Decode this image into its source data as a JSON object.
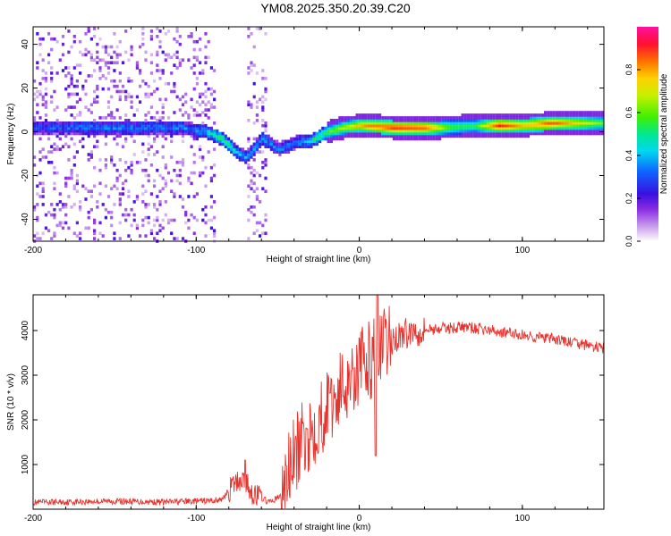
{
  "title": "YM08.2025.350.20.39.C20",
  "chart_data": [
    {
      "type": "heatmap",
      "name": "spectrogram",
      "xlabel": "Height of straight line (km)",
      "ylabel": "Frequency (Hz)",
      "xlim": [
        -200,
        150
      ],
      "ylim": [
        -50,
        48
      ],
      "xticks": [
        -200,
        -100,
        0,
        100
      ],
      "yticks": [
        -40,
        -20,
        0,
        20,
        40
      ],
      "colorbar": {
        "label": "Normalized spectral amplitude",
        "range": [
          0,
          1
        ],
        "ticks": [
          0.0,
          0.2,
          0.4,
          0.6,
          0.8
        ],
        "tick_labels": [
          "0.0",
          "0.2",
          "0.4",
          "0.6",
          "0.8"
        ]
      },
      "ridge": {
        "description_points_km_hz": [
          [
            -200,
            2
          ],
          [
            -150,
            2
          ],
          [
            -110,
            2
          ],
          [
            -95,
            0
          ],
          [
            -85,
            -3
          ],
          [
            -78,
            -8
          ],
          [
            -70,
            -12
          ],
          [
            -60,
            -3
          ],
          [
            -50,
            -8
          ],
          [
            -40,
            -5
          ],
          [
            -30,
            -4
          ],
          [
            -20,
            0
          ],
          [
            -10,
            2
          ],
          [
            0,
            3
          ],
          [
            20,
            2
          ],
          [
            50,
            2
          ],
          [
            80,
            3
          ],
          [
            100,
            3
          ],
          [
            120,
            4
          ],
          [
            150,
            4
          ]
        ],
        "amplitude_points": [
          [
            -200,
            0.3
          ],
          [
            -160,
            0.35
          ],
          [
            -120,
            0.35
          ],
          [
            -100,
            0.35
          ],
          [
            -85,
            0.55
          ],
          [
            -75,
            0.4
          ],
          [
            -55,
            0.35
          ],
          [
            -40,
            0.35
          ],
          [
            -20,
            0.6
          ],
          [
            -10,
            0.7
          ],
          [
            0,
            0.8
          ],
          [
            20,
            0.95
          ],
          [
            40,
            0.9
          ],
          [
            55,
            0.6
          ],
          [
            70,
            0.55
          ],
          [
            85,
            0.95
          ],
          [
            100,
            0.8
          ],
          [
            115,
            0.9
          ],
          [
            150,
            0.6
          ]
        ]
      }
    },
    {
      "type": "line",
      "name": "snr",
      "xlabel": "Height of straight line (km)",
      "ylabel": "SNR (10 * v/v)",
      "xlim": [
        -200,
        150
      ],
      "ylim": [
        0,
        4800
      ],
      "xticks": [
        -200,
        -100,
        0,
        100
      ],
      "yticks": [
        1000,
        2000,
        3000,
        4000
      ],
      "color": "#e8322c",
      "trend_km_snr": [
        [
          -200,
          150
        ],
        [
          -150,
          180
        ],
        [
          -120,
          160
        ],
        [
          -100,
          180
        ],
        [
          -85,
          200
        ],
        [
          -78,
          500
        ],
        [
          -72,
          700
        ],
        [
          -65,
          350
        ],
        [
          -55,
          150
        ],
        [
          -48,
          300
        ],
        [
          -42,
          1000
        ],
        [
          -35,
          1500
        ],
        [
          -25,
          2000
        ],
        [
          -15,
          2500
        ],
        [
          -5,
          3000
        ],
        [
          5,
          3300
        ],
        [
          15,
          3600
        ],
        [
          25,
          3900
        ],
        [
          35,
          4000
        ],
        [
          50,
          4050
        ],
        [
          65,
          4080
        ],
        [
          80,
          4000
        ],
        [
          100,
          3900
        ],
        [
          120,
          3800
        ],
        [
          150,
          3600
        ]
      ],
      "spikes_km_snr": [
        [
          -70,
          1100
        ],
        [
          -32,
          1800
        ],
        [
          -18,
          2600
        ],
        [
          -5,
          3100
        ],
        [
          8,
          3850
        ],
        [
          11,
          4800
        ],
        [
          12,
          3000
        ],
        [
          10,
          1200
        ]
      ]
    }
  ],
  "colors": {
    "axis": "#000000",
    "snr_line": "#e8322c"
  }
}
